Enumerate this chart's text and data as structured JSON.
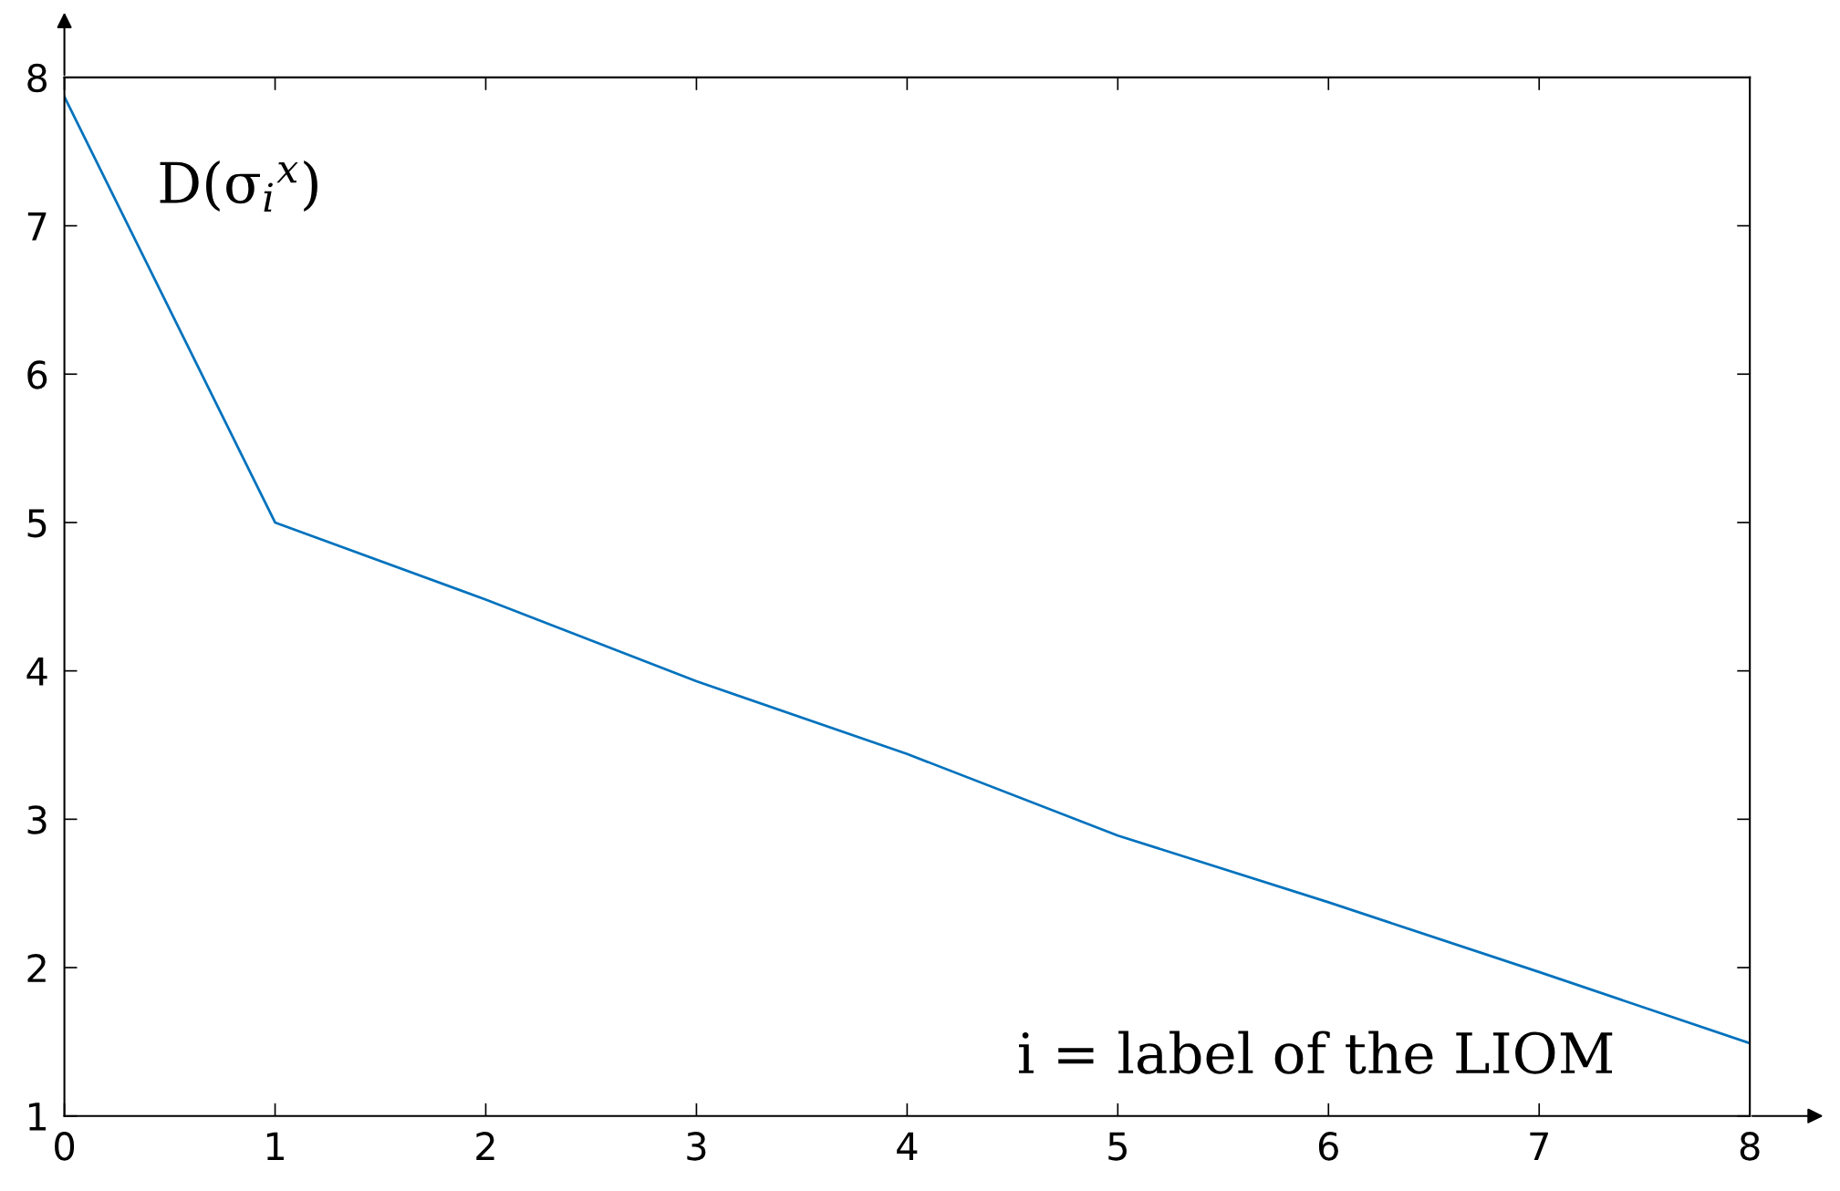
{
  "chart_data": {
    "type": "line",
    "xlabel": "i = label of the LIOM",
    "ylabel": "D(σ$_{i}$$^{x}$)",
    "x": [
      0,
      1,
      2,
      3,
      4,
      5,
      6,
      7,
      8
    ],
    "series": [
      {
        "color": "#0072bd",
        "values": [
          7.87,
          5.0,
          4.48,
          3.93,
          3.44,
          2.89,
          2.44,
          1.97,
          1.49
        ]
      }
    ],
    "xlim": [
      0,
      8
    ],
    "ylim": [
      1,
      8
    ],
    "xticks": [
      0,
      1,
      2,
      3,
      4,
      5,
      6,
      7,
      8
    ],
    "yticks": [
      1,
      2,
      3,
      4,
      5,
      6,
      7,
      8
    ],
    "grid": false,
    "legend": false,
    "marker": "none",
    "line_style": "solid"
  }
}
